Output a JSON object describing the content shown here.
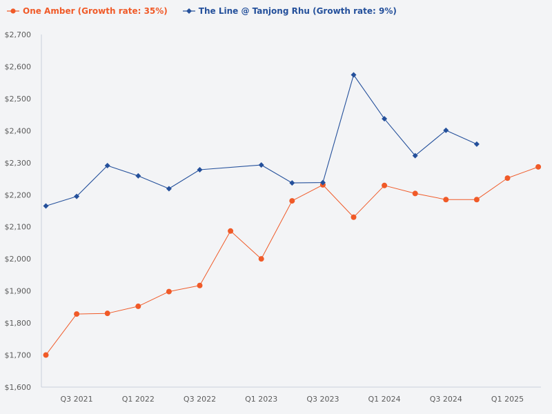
{
  "colors": {
    "background": "#f3f4f6",
    "axis": "#c8d0dc",
    "tick_text": "#5b5b5b"
  },
  "chart_data": {
    "type": "line",
    "title": "",
    "xlabel": "",
    "ylabel": "",
    "ylim": [
      1600,
      2700
    ],
    "y_ticks": [
      1600,
      1700,
      1800,
      1900,
      2000,
      2100,
      2200,
      2300,
      2400,
      2500,
      2600,
      2700
    ],
    "y_tick_labels": [
      "$1,600",
      "$1,700",
      "$1,800",
      "$1,900",
      "$2,000",
      "$2,100",
      "$2,200",
      "$2,300",
      "$2,400",
      "$2,500",
      "$2,600",
      "$2,700"
    ],
    "grid": false,
    "legend_position": "top-left",
    "categories": [
      "Q2 2021",
      "Q3 2021",
      "Q4 2021",
      "Q1 2022",
      "Q2 2022",
      "Q3 2022",
      "Q4 2022",
      "Q1 2023",
      "Q2 2023",
      "Q3 2023",
      "Q4 2023",
      "Q1 2024",
      "Q2 2024",
      "Q3 2024",
      "Q4 2024",
      "Q1 2025",
      "Q2 2025"
    ],
    "x_tick_labels": [
      {
        "index": 1,
        "label": "Q3 2021"
      },
      {
        "index": 3,
        "label": "Q1 2022"
      },
      {
        "index": 5,
        "label": "Q3 2022"
      },
      {
        "index": 7,
        "label": "Q1 2023"
      },
      {
        "index": 9,
        "label": "Q3 2023"
      },
      {
        "index": 11,
        "label": "Q1 2024"
      },
      {
        "index": 13,
        "label": "Q3 2024"
      },
      {
        "index": 15,
        "label": "Q1 2025"
      }
    ],
    "series": [
      {
        "name": "One Amber (Growth rate: 35%)",
        "color": "#f05a28",
        "marker": "circle",
        "points": [
          {
            "x": 0,
            "y": 1700
          },
          {
            "x": 1,
            "y": 1828
          },
          {
            "x": 2,
            "y": 1830
          },
          {
            "x": 3,
            "y": 1852
          },
          {
            "x": 4,
            "y": 1898
          },
          {
            "x": 5,
            "y": 1917
          },
          {
            "x": 6,
            "y": 2087
          },
          {
            "x": 7,
            "y": 2000
          },
          {
            "x": 8,
            "y": 2181
          },
          {
            "x": 9,
            "y": 2231
          },
          {
            "x": 10,
            "y": 2130
          },
          {
            "x": 11,
            "y": 2229
          },
          {
            "x": 12,
            "y": 2204
          },
          {
            "x": 13,
            "y": 2185
          },
          {
            "x": 14,
            "y": 2185
          },
          {
            "x": 15,
            "y": 2252
          },
          {
            "x": 16,
            "y": 2287
          }
        ]
      },
      {
        "name": "The Line @ Tanjong Rhu (Growth rate: 9%)",
        "color": "#24509b",
        "marker": "diamond",
        "points": [
          {
            "x": 0,
            "y": 2165
          },
          {
            "x": 1,
            "y": 2195
          },
          {
            "x": 2,
            "y": 2291
          },
          {
            "x": 3,
            "y": 2259
          },
          {
            "x": 4,
            "y": 2219
          },
          {
            "x": 5,
            "y": 2278
          },
          {
            "x": 7,
            "y": 2293
          },
          {
            "x": 8,
            "y": 2237
          },
          {
            "x": 9,
            "y": 2238
          },
          {
            "x": 10,
            "y": 2574
          },
          {
            "x": 11,
            "y": 2437
          },
          {
            "x": 12,
            "y": 2322
          },
          {
            "x": 13,
            "y": 2401
          },
          {
            "x": 14,
            "y": 2358
          }
        ]
      }
    ]
  }
}
